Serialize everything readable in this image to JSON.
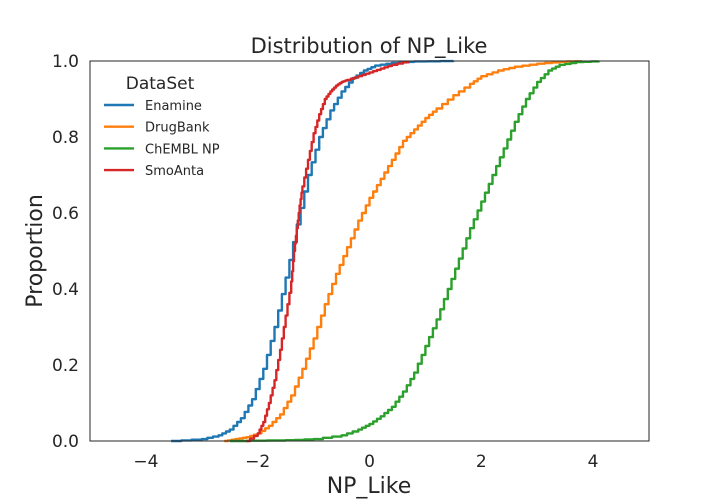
{
  "chart_data": {
    "type": "line",
    "title": "Distribution of NP_Like",
    "xlabel": "NP_Like",
    "ylabel": "Proportion",
    "xlim": [
      -5,
      5
    ],
    "ylim": [
      0,
      1
    ],
    "xticks": [
      -4,
      -2,
      0,
      2,
      4
    ],
    "xtick_labels": [
      "−4",
      "−2",
      "0",
      "2",
      "4"
    ],
    "yticks": [
      0,
      0.2,
      0.4,
      0.6,
      0.8,
      1.0
    ],
    "ytick_labels": [
      "0.0",
      "0.2",
      "0.4",
      "0.6",
      "0.8",
      "1.0"
    ],
    "grid": false,
    "legend": {
      "title": "DataSet",
      "position": "top-left"
    },
    "series": [
      {
        "name": "Enamine",
        "color": "#1f77b4",
        "points": [
          [
            -3.55,
            0
          ],
          [
            -3.0,
            0.005
          ],
          [
            -2.7,
            0.015
          ],
          [
            -2.5,
            0.03
          ],
          [
            -2.3,
            0.06
          ],
          [
            -2.1,
            0.11
          ],
          [
            -1.9,
            0.19
          ],
          [
            -1.7,
            0.3
          ],
          [
            -1.5,
            0.43
          ],
          [
            -1.3,
            0.57
          ],
          [
            -1.1,
            0.7
          ],
          [
            -0.9,
            0.8
          ],
          [
            -0.7,
            0.87
          ],
          [
            -0.5,
            0.92
          ],
          [
            -0.3,
            0.955
          ],
          [
            -0.1,
            0.975
          ],
          [
            0.1,
            0.988
          ],
          [
            0.4,
            0.995
          ],
          [
            0.8,
            0.999
          ],
          [
            1.5,
            1.0
          ]
        ]
      },
      {
        "name": "DrugBank",
        "color": "#ff7f0e",
        "points": [
          [
            -2.6,
            0
          ],
          [
            -2.4,
            0.005
          ],
          [
            -2.2,
            0.01
          ],
          [
            -2.0,
            0.02
          ],
          [
            -1.8,
            0.04
          ],
          [
            -1.6,
            0.07
          ],
          [
            -1.4,
            0.12
          ],
          [
            -1.2,
            0.19
          ],
          [
            -1.0,
            0.27
          ],
          [
            -0.8,
            0.36
          ],
          [
            -0.6,
            0.44
          ],
          [
            -0.4,
            0.51
          ],
          [
            -0.2,
            0.58
          ],
          [
            0,
            0.64
          ],
          [
            0.2,
            0.69
          ],
          [
            0.4,
            0.74
          ],
          [
            0.6,
            0.79
          ],
          [
            0.8,
            0.82
          ],
          [
            1.0,
            0.85
          ],
          [
            1.2,
            0.875
          ],
          [
            1.5,
            0.91
          ],
          [
            1.8,
            0.94
          ],
          [
            2.0,
            0.96
          ],
          [
            2.3,
            0.975
          ],
          [
            2.6,
            0.985
          ],
          [
            3.0,
            0.993
          ],
          [
            3.4,
            0.998
          ],
          [
            3.8,
            1.0
          ]
        ]
      },
      {
        "name": "ChEMBL NP",
        "color": "#2ca02c",
        "points": [
          [
            -2.5,
            0
          ],
          [
            -1.5,
            0.002
          ],
          [
            -1.0,
            0.005
          ],
          [
            -0.5,
            0.015
          ],
          [
            -0.2,
            0.03
          ],
          [
            0,
            0.045
          ],
          [
            0.2,
            0.065
          ],
          [
            0.4,
            0.09
          ],
          [
            0.6,
            0.13
          ],
          [
            0.8,
            0.18
          ],
          [
            1.0,
            0.25
          ],
          [
            1.2,
            0.32
          ],
          [
            1.4,
            0.4
          ],
          [
            1.6,
            0.48
          ],
          [
            1.8,
            0.56
          ],
          [
            2.0,
            0.63
          ],
          [
            2.2,
            0.7
          ],
          [
            2.4,
            0.77
          ],
          [
            2.6,
            0.84
          ],
          [
            2.8,
            0.9
          ],
          [
            3.0,
            0.945
          ],
          [
            3.2,
            0.975
          ],
          [
            3.4,
            0.99
          ],
          [
            3.7,
            0.997
          ],
          [
            4.1,
            1.0
          ]
        ]
      },
      {
        "name": "SmoAnta",
        "color": "#d62728",
        "points": [
          [
            -2.2,
            0
          ],
          [
            -2.0,
            0.02
          ],
          [
            -1.9,
            0.05
          ],
          [
            -1.8,
            0.1
          ],
          [
            -1.7,
            0.16
          ],
          [
            -1.6,
            0.24
          ],
          [
            -1.5,
            0.33
          ],
          [
            -1.4,
            0.42
          ],
          [
            -1.35,
            0.5
          ],
          [
            -1.3,
            0.56
          ],
          [
            -1.25,
            0.62
          ],
          [
            -1.2,
            0.67
          ],
          [
            -1.1,
            0.74
          ],
          [
            -1.0,
            0.81
          ],
          [
            -0.9,
            0.86
          ],
          [
            -0.8,
            0.9
          ],
          [
            -0.7,
            0.92
          ],
          [
            -0.6,
            0.935
          ],
          [
            -0.5,
            0.945
          ],
          [
            -0.4,
            0.95
          ],
          [
            -0.2,
            0.96
          ],
          [
            0,
            0.97
          ],
          [
            0.2,
            0.98
          ],
          [
            0.4,
            0.99
          ],
          [
            0.7,
            1.0
          ]
        ]
      }
    ]
  }
}
